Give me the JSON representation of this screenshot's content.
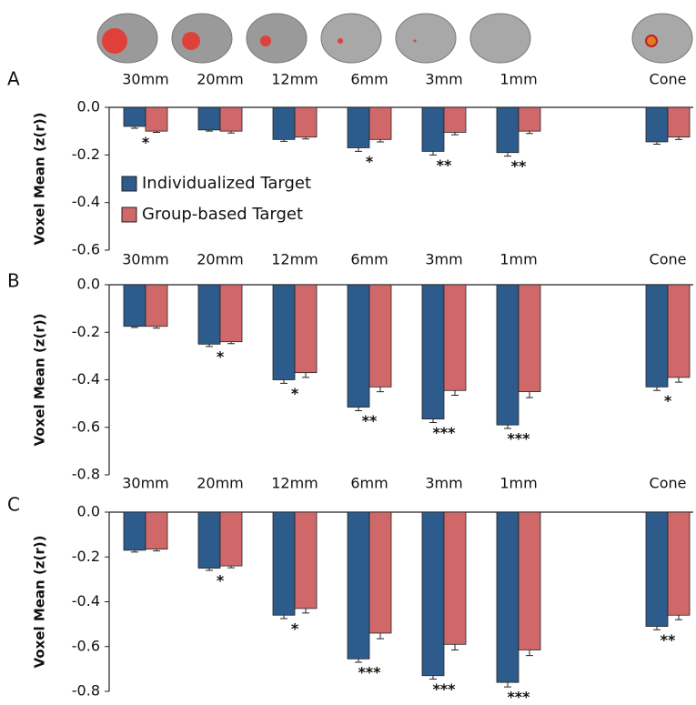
{
  "chart_data": [
    {
      "type": "bar",
      "panel": "A",
      "y_label": "Voxel Mean (z(r))",
      "categories": [
        "30mm",
        "20mm",
        "12mm",
        "6mm",
        "3mm",
        "1mm",
        null,
        "Cone"
      ],
      "series": [
        {
          "name": "Individualized Target",
          "color": "#2d5b8c",
          "values": [
            -0.08,
            -0.095,
            -0.135,
            -0.17,
            -0.185,
            -0.19,
            null,
            -0.145
          ],
          "errors": [
            0.008,
            0.005,
            0.008,
            0.015,
            0.015,
            0.015,
            null,
            0.01
          ]
        },
        {
          "name": "Group-based Target",
          "color": "#d0686a",
          "values": [
            -0.1,
            -0.1,
            -0.125,
            -0.135,
            -0.105,
            -0.1,
            null,
            -0.125
          ],
          "errors": [
            0.005,
            0.008,
            0.008,
            0.01,
            0.01,
            0.01,
            null,
            0.01
          ]
        }
      ],
      "annotations": [
        "*",
        null,
        null,
        "*",
        "**",
        "**",
        null,
        null
      ],
      "ylim": [
        -0.6,
        0
      ],
      "yticks": [
        {
          "value": 0,
          "label": "0.0"
        },
        -0.2,
        -0.4,
        -0.6
      ],
      "legend": "left"
    },
    {
      "type": "bar",
      "panel": "B",
      "y_label": "Voxel Mean (z(r))",
      "categories": [
        "30mm",
        "20mm",
        "12mm",
        "6mm",
        "3mm",
        "1mm",
        null,
        "Cone"
      ],
      "series": [
        {
          "color": "#2d5b8c",
          "values": [
            -0.175,
            -0.25,
            -0.4,
            -0.515,
            -0.565,
            -0.59,
            null,
            -0.43
          ],
          "errors": [
            0.005,
            0.01,
            0.015,
            0.015,
            0.015,
            0.015,
            null,
            0.015
          ]
        },
        {
          "color": "#d0686a",
          "values": [
            -0.175,
            -0.24,
            -0.37,
            -0.43,
            -0.445,
            -0.45,
            null,
            -0.39
          ],
          "errors": [
            0.008,
            0.008,
            0.02,
            0.02,
            0.02,
            0.025,
            null,
            0.02
          ]
        }
      ],
      "annotations": [
        null,
        "*",
        "*",
        "**",
        "***",
        "***",
        null,
        "*"
      ],
      "ylim": [
        -0.8,
        0
      ],
      "yticks": [
        {
          "value": 0,
          "label": "0.0"
        },
        -0.2,
        -0.4,
        -0.6,
        -0.8
      ]
    },
    {
      "type": "bar",
      "panel": "C",
      "y_label": "Voxel Mean (z(r))",
      "categories": [
        "30mm",
        "20mm",
        "12mm",
        "6mm",
        "3mm",
        "1mm",
        null,
        "Cone"
      ],
      "series": [
        {
          "color": "#2d5b8c",
          "values": [
            -0.17,
            -0.25,
            -0.46,
            -0.655,
            -0.73,
            -0.76,
            null,
            -0.51
          ],
          "errors": [
            0.008,
            0.01,
            0.015,
            0.015,
            0.015,
            0.02,
            null,
            0.015
          ]
        },
        {
          "color": "#d0686a",
          "values": [
            -0.165,
            -0.24,
            -0.43,
            -0.54,
            -0.59,
            -0.615,
            null,
            -0.46
          ],
          "errors": [
            0.008,
            0.008,
            0.02,
            0.025,
            0.025,
            0.025,
            null,
            0.02
          ]
        }
      ],
      "annotations": [
        null,
        "*",
        "*",
        "***",
        "***",
        "***",
        null,
        "**"
      ],
      "ylim": [
        -0.8,
        0
      ],
      "yticks": [
        {
          "value": 0,
          "label": "0.0"
        },
        -0.2,
        -0.4,
        -0.6,
        -0.8
      ]
    }
  ]
}
